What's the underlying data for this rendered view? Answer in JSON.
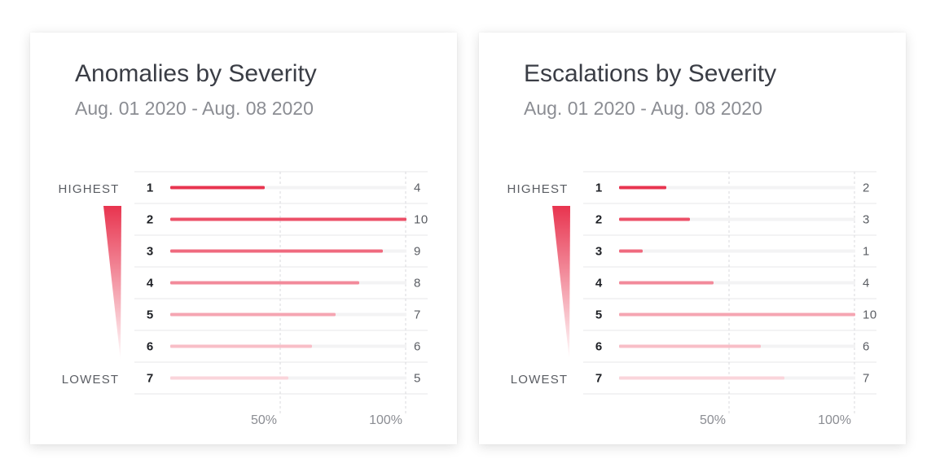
{
  "chart_data": [
    {
      "type": "bar",
      "orientation": "horizontal",
      "title": "Anomalies by Severity",
      "subtitle": "Aug. 01 2020 - Aug. 08 2020",
      "categories": [
        "1",
        "2",
        "3",
        "4",
        "5",
        "6",
        "7"
      ],
      "values": [
        4,
        10,
        9,
        8,
        7,
        6,
        5
      ],
      "severity_high_label": "HIGHEST",
      "severity_low_label": "LOWEST",
      "xtick_labels": [
        "50%",
        "100%"
      ],
      "grid": true
    },
    {
      "type": "bar",
      "orientation": "horizontal",
      "title": "Escalations by Severity",
      "subtitle": "Aug. 01 2020 - Aug. 08 2020",
      "categories": [
        "1",
        "2",
        "3",
        "4",
        "5",
        "6",
        "7"
      ],
      "values": [
        2,
        3,
        1,
        4,
        10,
        6,
        7
      ],
      "severity_high_label": "HIGHEST",
      "severity_low_label": "LOWEST",
      "xtick_labels": [
        "50%",
        "100%"
      ],
      "grid": true
    }
  ],
  "colors": {
    "bar_ranks": [
      "#e8344f",
      "#ec5068",
      "#ef6a7e",
      "#f28a9a",
      "#f5a5b2",
      "#f8bec7",
      "#fad5db"
    ],
    "track": "#f3f3f4",
    "wedge_top": "#e8344f",
    "wedge_bottom": "#ffffff"
  }
}
